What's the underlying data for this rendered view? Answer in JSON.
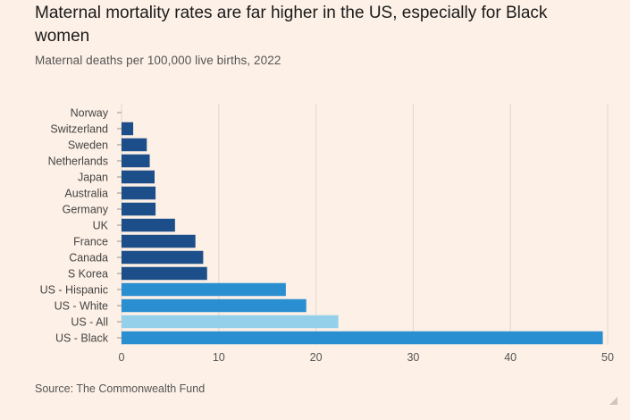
{
  "header": {
    "title": "Maternal mortality rates are far higher in the US, especially for Black women",
    "subtitle": "Maternal deaths per 100,000 live births, 2022"
  },
  "footer": {
    "source": "Source: The Commonwealth Fund"
  },
  "colors": {
    "background": "#fdf0e6",
    "other_countries": "#1c4f8a",
    "us_groups": "#2a8fd0",
    "us_all": "#95d0ea",
    "grid": "#e2d7cd"
  },
  "chart_data": {
    "type": "bar",
    "orientation": "horizontal",
    "title": "Maternal mortality rates are far higher in the US, especially for Black women",
    "subtitle": "Maternal deaths per 100,000 live births, 2022",
    "categories": [
      "Norway",
      "Switzerland",
      "Sweden",
      "Netherlands",
      "Japan",
      "Australia",
      "Germany",
      "UK",
      "France",
      "Canada",
      "S Korea",
      "US - Hispanic",
      "US - White",
      "US - All",
      "US - Black"
    ],
    "values": [
      0,
      1.2,
      2.6,
      2.9,
      3.4,
      3.5,
      3.5,
      5.5,
      7.6,
      8.4,
      8.8,
      16.9,
      19.0,
      22.3,
      49.5
    ],
    "color_groups": [
      "other_countries",
      "other_countries",
      "other_countries",
      "other_countries",
      "other_countries",
      "other_countries",
      "other_countries",
      "other_countries",
      "other_countries",
      "other_countries",
      "other_countries",
      "us_groups",
      "us_groups",
      "us_all",
      "us_groups"
    ],
    "xlim": [
      0,
      50
    ],
    "xticks": [
      0,
      10,
      20,
      30,
      40,
      50
    ],
    "grid": "vertical",
    "legend": "none"
  }
}
